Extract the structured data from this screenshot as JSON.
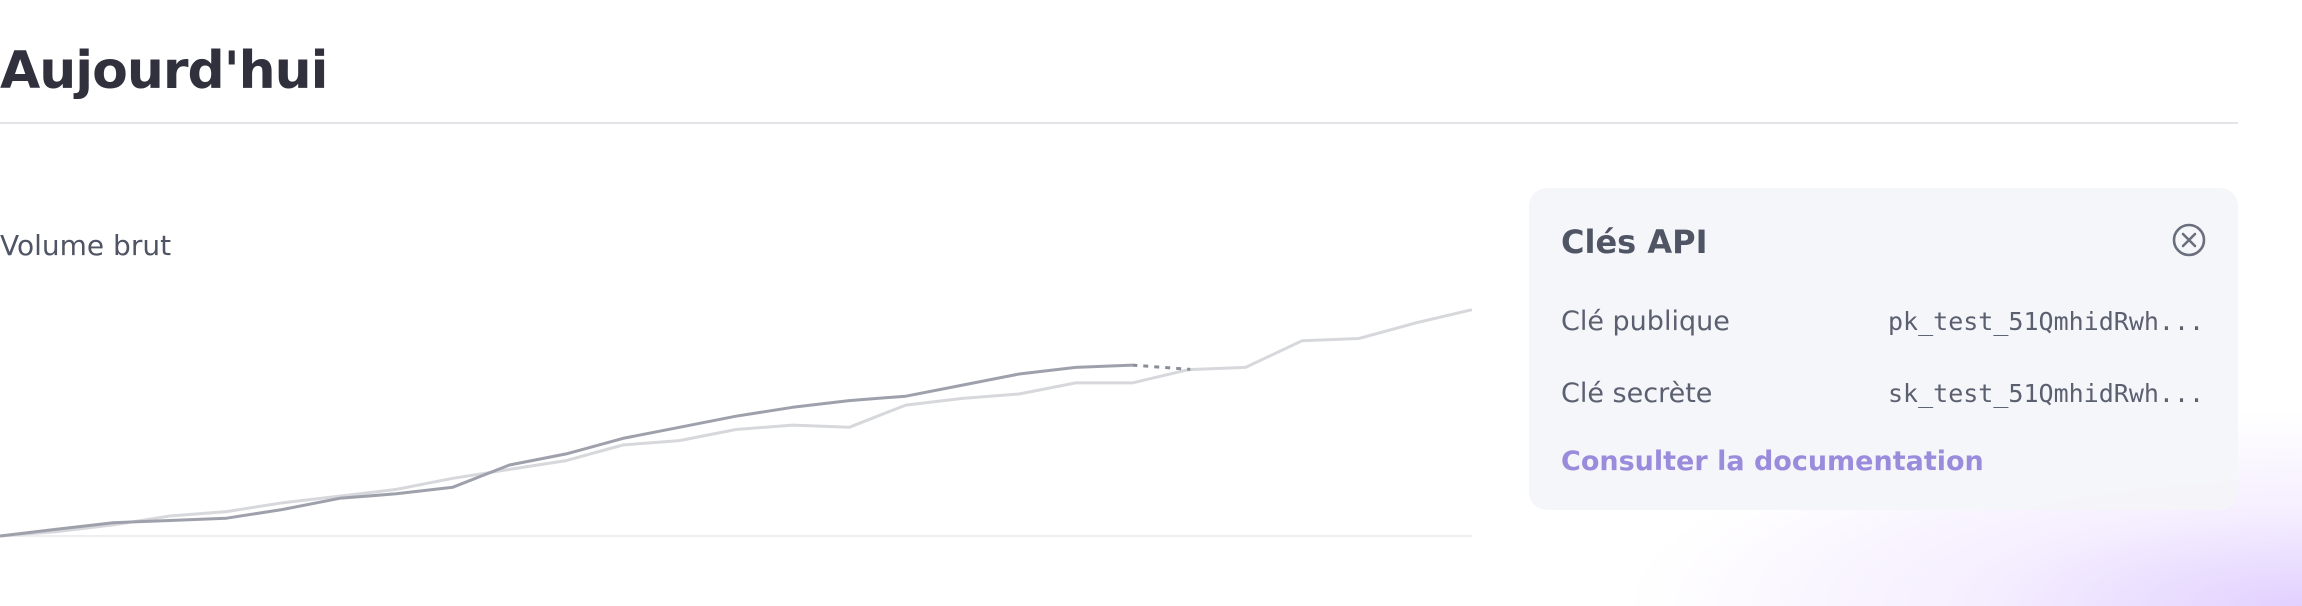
{
  "page": {
    "title": "Aujourd'hui"
  },
  "chart": {
    "label": "Volume brut"
  },
  "api_keys": {
    "title": "Clés API",
    "publishable_label": "Clé publique",
    "publishable_value": "pk_test_51QmhidRwh...",
    "secret_label": "Clé secrète",
    "secret_value": "sk_test_51QmhidRwh...",
    "docs_link": "Consulter la documentation",
    "close_icon": "close-circle-icon"
  },
  "colors": {
    "accent": "#9b8bdd",
    "text": "#30313d",
    "muted": "#5b6070",
    "today_line": "#9ea1ac",
    "comparison_line": "#d7d8dc"
  },
  "chart_data": {
    "type": "line",
    "title": "Volume brut",
    "xlabel": "",
    "ylabel": "",
    "grid": false,
    "series": [
      {
        "values": [
          0,
          3,
          6,
          7,
          8,
          12,
          17,
          19,
          22,
          32,
          37,
          44,
          49,
          54,
          58,
          61,
          63,
          68,
          73,
          76,
          77
        ]
      },
      {
        "values": [
          0,
          2,
          5,
          9,
          11,
          15,
          18,
          21,
          26,
          30,
          34,
          41,
          43,
          48,
          50,
          49,
          59,
          62,
          64,
          69,
          69,
          75,
          76,
          88,
          89,
          96,
          102
        ]
      }
    ],
    "projection": {
      "from_index": 19,
      "to_index": 20,
      "start_value": 76,
      "end_value": 76
    },
    "y_range": [
      0,
      110
    ]
  }
}
